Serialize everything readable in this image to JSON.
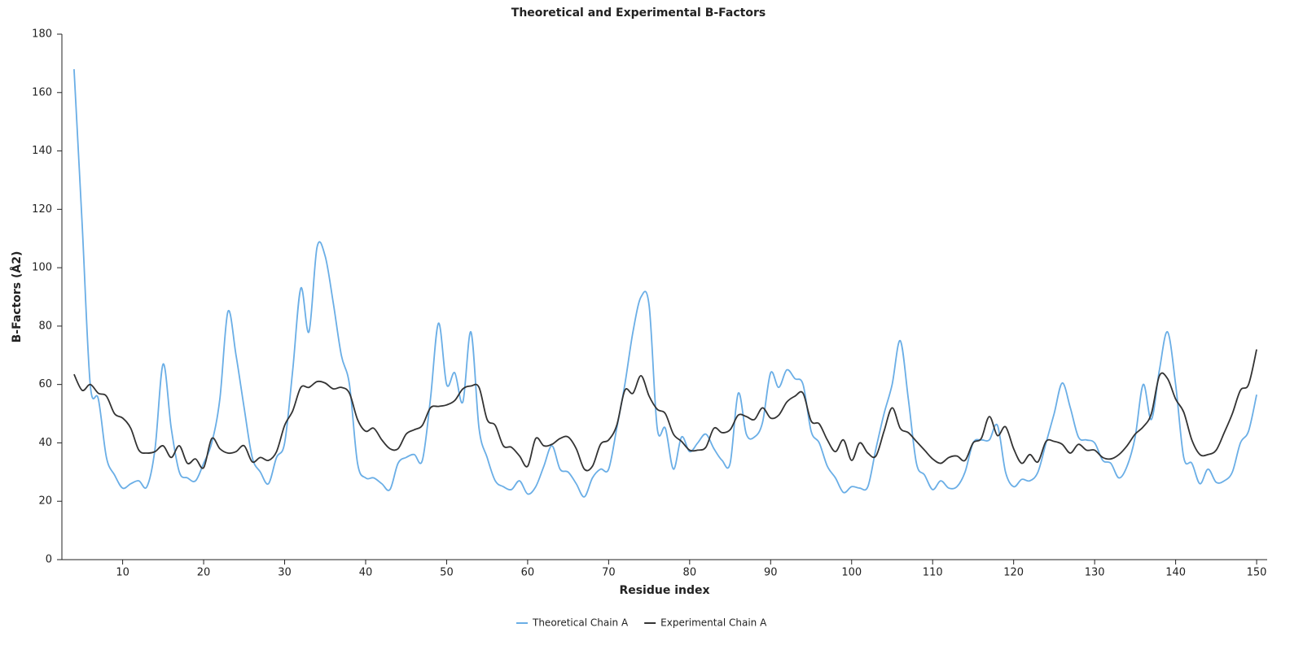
{
  "chart_data": {
    "type": "line",
    "title": "Theoretical and Experimental B-Factors",
    "x_label": "Residue index",
    "y_label": "B-Factors (Å2)",
    "x": [
      4,
      5,
      6,
      7,
      8,
      9,
      10,
      11,
      12,
      13,
      14,
      15,
      16,
      17,
      18,
      19,
      20,
      21,
      22,
      23,
      24,
      25,
      26,
      27,
      28,
      29,
      30,
      31,
      32,
      33,
      34,
      35,
      36,
      37,
      38,
      39,
      40,
      41,
      42,
      43,
      44,
      45,
      46,
      47,
      48,
      49,
      50,
      51,
      52,
      53,
      54,
      55,
      56,
      57,
      58,
      59,
      60,
      61,
      62,
      63,
      64,
      65,
      66,
      67,
      68,
      69,
      70,
      71,
      72,
      73,
      74,
      75,
      76,
      77,
      78,
      79,
      80,
      81,
      82,
      83,
      84,
      85,
      86,
      87,
      88,
      89,
      90,
      91,
      92,
      93,
      94,
      95,
      96,
      97,
      98,
      99,
      100,
      101,
      102,
      103,
      104,
      105,
      106,
      107,
      108,
      109,
      110,
      111,
      112,
      113,
      114,
      115,
      116,
      117,
      118,
      119,
      120,
      121,
      122,
      123,
      124,
      125,
      126,
      127,
      128,
      129,
      130,
      131,
      132,
      133,
      134,
      135,
      136,
      137,
      138,
      139,
      140,
      141,
      142,
      143,
      144,
      145,
      146,
      147,
      148,
      149,
      150
    ],
    "series": [
      {
        "name": "Theoretical Chain A",
        "color": "#6aaee6",
        "values": [
          168,
          115,
          60,
          55,
          35,
          29,
          24.5,
          26,
          27,
          25,
          38,
          67,
          45,
          30,
          28,
          27,
          33,
          40,
          55,
          85,
          70,
          52,
          35,
          30,
          26,
          35,
          40,
          65,
          93,
          78,
          107,
          104,
          88,
          70,
          60,
          33,
          28,
          28,
          26,
          24,
          33,
          35,
          36,
          34,
          55,
          81,
          60,
          64,
          54,
          78,
          45,
          35,
          27,
          25,
          24,
          27,
          22.5,
          25,
          32,
          39,
          31,
          30,
          26,
          21.5,
          28,
          31,
          31,
          45,
          60,
          78,
          90,
          87,
          45,
          45,
          31,
          42,
          37,
          40,
          43,
          38,
          34,
          33,
          57,
          43,
          42,
          47,
          64,
          59,
          65,
          62,
          60,
          44,
          40,
          32,
          28,
          23,
          25,
          24.5,
          25,
          38,
          50,
          60,
          75,
          55,
          33,
          29,
          24,
          27,
          24.5,
          25,
          30,
          40,
          41,
          41,
          46,
          30,
          25,
          27.5,
          27,
          30,
          40,
          50,
          60.5,
          52,
          42,
          41,
          40,
          34,
          33,
          28,
          32,
          42,
          60,
          48,
          65,
          78,
          60,
          35,
          33,
          26,
          31,
          26.5,
          27,
          30,
          40,
          44,
          56.5
        ]
      },
      {
        "name": "Experimental Chain A",
        "color": "#333333",
        "values": [
          63.5,
          58,
          60,
          57,
          56,
          50,
          48.5,
          45,
          37.5,
          36.5,
          37,
          39,
          35,
          39,
          33,
          34.5,
          31.5,
          41.5,
          38,
          36.5,
          37,
          39,
          33.5,
          35,
          34,
          37,
          46,
          51,
          59,
          59,
          61,
          60.5,
          58.5,
          59,
          57,
          48,
          44,
          45,
          41,
          38,
          38,
          43,
          44.5,
          46,
          52,
          52.5,
          53,
          54.5,
          58.5,
          59.5,
          59,
          48,
          46,
          39,
          38.5,
          35.5,
          32,
          41.5,
          39,
          39.5,
          41.5,
          42,
          38,
          31,
          32,
          39.5,
          41,
          46,
          58,
          57,
          63,
          56,
          51.5,
          50,
          43,
          40.5,
          37.5,
          37.5,
          38.5,
          45,
          43.5,
          44.5,
          49.5,
          49,
          48,
          52,
          48.5,
          49.5,
          54,
          56,
          57,
          47.5,
          46.5,
          41,
          37,
          41,
          34,
          40,
          36.5,
          35.5,
          44,
          52,
          45,
          43.5,
          40.5,
          37.5,
          34.5,
          33,
          35,
          35.5,
          34,
          40,
          41.5,
          49,
          42.5,
          45.5,
          38,
          33,
          36,
          33.5,
          40.5,
          40.5,
          39.5,
          36.5,
          39.5,
          37.5,
          37.5,
          35,
          34.5,
          36,
          39,
          43,
          45.5,
          50,
          63,
          62,
          55,
          50.5,
          41,
          36,
          36,
          37.5,
          43.5,
          50,
          58,
          60,
          72
        ]
      }
    ],
    "xlim": [
      2.5,
      151.3
    ],
    "xticks": [
      10,
      20,
      30,
      40,
      50,
      60,
      70,
      80,
      90,
      100,
      110,
      120,
      130,
      140,
      150
    ],
    "ylim": [
      0,
      180
    ],
    "yticks": [
      0,
      20,
      40,
      60,
      80,
      100,
      120,
      140,
      160,
      180
    ],
    "grid": false,
    "legend": "bottom"
  }
}
